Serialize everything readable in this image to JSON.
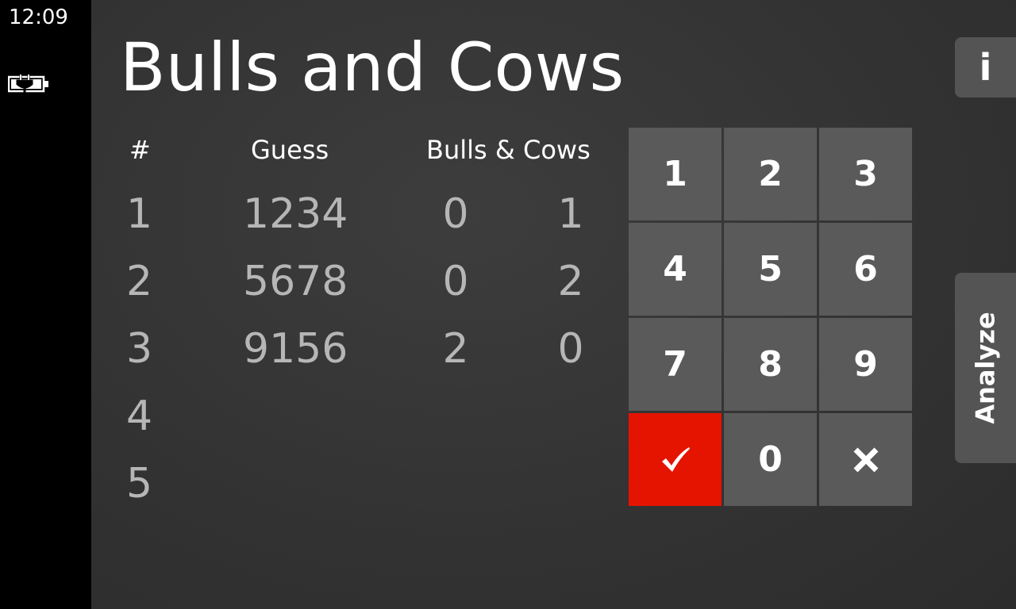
{
  "status": {
    "time": "12:09",
    "battery_icon": "battery-charging-icon"
  },
  "app": {
    "title": "Bulls and Cows"
  },
  "table": {
    "headers": {
      "number": "#",
      "guess": "Guess",
      "bulls_cows": "Bulls & Cows"
    },
    "rows": [
      {
        "number": "1",
        "guess": "1234",
        "bulls": "0",
        "cows": "1"
      },
      {
        "number": "2",
        "guess": "5678",
        "bulls": "0",
        "cows": "2"
      },
      {
        "number": "3",
        "guess": "9156",
        "bulls": "2",
        "cows": "0"
      },
      {
        "number": "4",
        "guess": "",
        "bulls": "",
        "cows": ""
      },
      {
        "number": "5",
        "guess": "",
        "bulls": "",
        "cows": ""
      }
    ]
  },
  "keypad": {
    "keys": [
      "1",
      "2",
      "3",
      "4",
      "5",
      "6",
      "7",
      "8",
      "9"
    ],
    "zero": "0",
    "confirm_icon": "checkmark-icon",
    "clear_icon": "close-icon",
    "confirm_color": "#e51400"
  },
  "side": {
    "info_label": "i",
    "analyze_label": "Analyze"
  }
}
